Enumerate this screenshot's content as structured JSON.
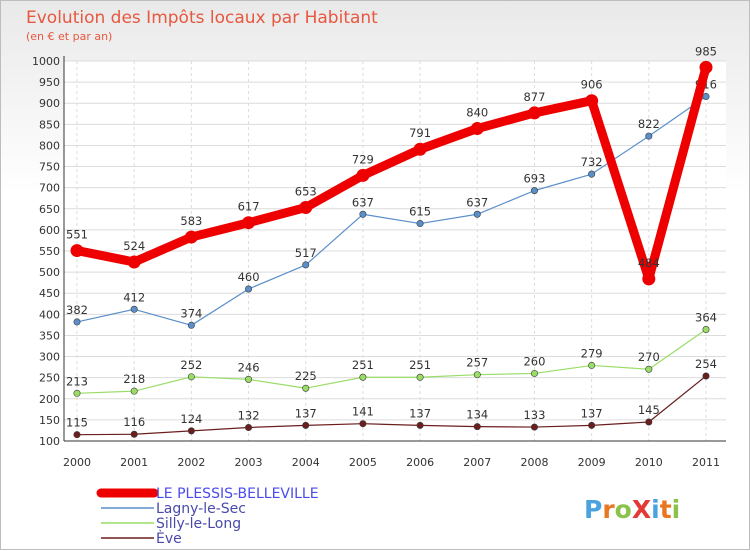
{
  "chart_data": {
    "type": "line",
    "title": "Evolution des Impôts locaux par Habitant",
    "subtitle": "(en € et par an)",
    "categories": [
      "2000",
      "2001",
      "2002",
      "2003",
      "2004",
      "2005",
      "2006",
      "2007",
      "2008",
      "2009",
      "2010",
      "2011"
    ],
    "ylim": [
      100,
      1000
    ],
    "yticks": [
      100,
      150,
      200,
      250,
      300,
      350,
      400,
      450,
      500,
      550,
      600,
      650,
      700,
      750,
      800,
      850,
      900,
      950,
      1000
    ],
    "series": [
      {
        "name": "LE PLESSIS-BELLEVILLE",
        "color": "#ee0000",
        "values": [
          551,
          524,
          583,
          617,
          653,
          729,
          791,
          840,
          877,
          906,
          484,
          985
        ]
      },
      {
        "name": "Lagny-le-Sec",
        "color": "#5b8fc9",
        "values": [
          382,
          412,
          374,
          460,
          517,
          637,
          615,
          637,
          693,
          732,
          822,
          916
        ]
      },
      {
        "name": "Silly-le-Long",
        "color": "#99dd66",
        "values": [
          213,
          218,
          252,
          246,
          225,
          251,
          251,
          257,
          260,
          279,
          270,
          364
        ]
      },
      {
        "name": "Ève",
        "color": "#6b1e1e",
        "values": [
          115,
          116,
          124,
          132,
          137,
          141,
          137,
          134,
          133,
          137,
          145,
          254
        ]
      }
    ]
  },
  "logo": {
    "text": "ProXiti"
  }
}
